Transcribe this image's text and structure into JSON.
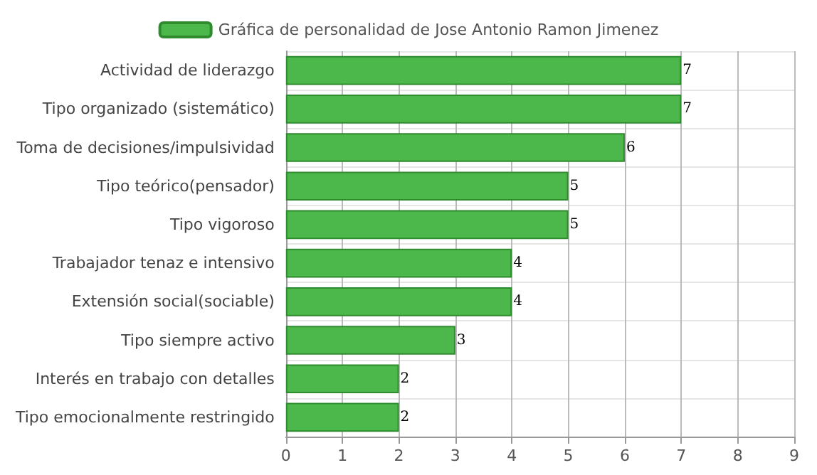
{
  "chart_data": {
    "type": "bar",
    "orientation": "horizontal",
    "categories": [
      "Actividad de liderazgo",
      "Tipo organizado (sistemático)",
      "Toma de decisiones/impulsividad",
      "Tipo teórico(pensador)",
      "Tipo vigoroso",
      "Trabajador tenaz e intensivo",
      "Extensión social(sociable)",
      "Tipo siempre activo",
      "Interés en trabajo con detalles",
      "Tipo emocionalmente restringido"
    ],
    "series": [
      {
        "name": "Gráfica de personalidad de Jose Antonio Ramon Jimenez",
        "color": "#4cb84c",
        "values": [
          7,
          7,
          6,
          5,
          5,
          4,
          4,
          3,
          2,
          2
        ]
      }
    ],
    "xlim": [
      0,
      9
    ],
    "xticks": [
      0,
      1,
      2,
      3,
      4,
      5,
      6,
      7,
      8,
      9
    ],
    "grid": true,
    "legend": "top",
    "data_labels": true
  }
}
